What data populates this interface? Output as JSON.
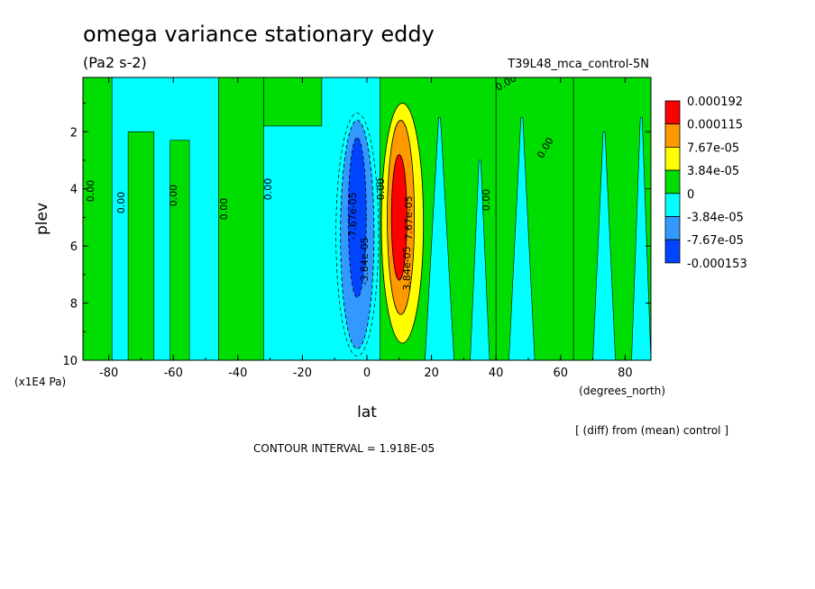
{
  "title": "omega variance stationary eddy",
  "units": "(Pa2 s-2)",
  "run_label": "T39L48_mca_control-5N",
  "units_note": "(x1E4 Pa)",
  "x_units_label": "(degrees_north)",
  "diff_note": "[ (diff) from (mean) control ]",
  "contour_interval": "CONTOUR INTERVAL = 1.918E-05",
  "contour_label_zero": "0.00",
  "contour_label_neg": "-7.67e-05",
  "contour_label_neg2": "-3.84e-05",
  "contour_label_pos": "3.84e-05",
  "contour_label_pos2": "7.67e-05",
  "chart_data": {
    "type": "heatmap",
    "title": "omega variance stationary eddy",
    "xlabel": "lat",
    "ylabel": "plev",
    "xlim": [
      -88,
      88
    ],
    "ylim": [
      10,
      0.1
    ],
    "x_ticks": [
      "-80",
      "-60",
      "-40",
      "-20",
      "0",
      "20",
      "40",
      "60",
      "80"
    ],
    "x_tick_values": [
      -80,
      -60,
      -40,
      -20,
      0,
      20,
      40,
      60,
      80
    ],
    "y_ticks": [
      "2",
      "4",
      "6",
      "8",
      "10"
    ],
    "y_tick_values": [
      2,
      4,
      6,
      8,
      10
    ],
    "legend": {
      "labels": [
        "0.000192",
        "0.000115",
        "7.67e-05",
        "3.84e-05",
        "0",
        "-3.84e-05",
        "-7.67e-05",
        "-0.000153"
      ],
      "colors": [
        "#ff0000",
        "#ff9900",
        "#ffff00",
        "#00dd00",
        "#00ffff",
        "#3399ff",
        "#0044ff"
      ],
      "placement": "right"
    },
    "colors": {
      "neg1": "#00ffff",
      "pos1": "#00dd00",
      "neg2": "#3399ff",
      "neg3": "#0044ff",
      "pos2": "#ffff00",
      "pos3": "#ff9900",
      "pos4": "#ff0000"
    },
    "green_bands": [
      {
        "lat": [
          -88,
          -79
        ],
        "plev": [
          0.1,
          10
        ]
      },
      {
        "lat": [
          -74,
          -66
        ],
        "plev": [
          2.0,
          10
        ]
      },
      {
        "lat": [
          -61,
          -55
        ],
        "plev": [
          2.3,
          10
        ]
      },
      {
        "lat": [
          -46,
          -32
        ],
        "plev": [
          0.1,
          10
        ]
      },
      {
        "lat": [
          -32,
          -14
        ],
        "plev": [
          0.1,
          1.8
        ]
      },
      {
        "lat": [
          4,
          40
        ],
        "plev": [
          0.1,
          10
        ]
      },
      {
        "lat": [
          40,
          64
        ],
        "plev": [
          0.1,
          10
        ]
      },
      {
        "lat": [
          64,
          88
        ],
        "plev": [
          0.1,
          10
        ]
      }
    ],
    "cyan_holes": [
      {
        "lat": [
          18,
          27
        ],
        "plev": [
          1.5,
          10
        ]
      },
      {
        "lat": [
          32,
          38
        ],
        "plev": [
          3.0,
          10
        ]
      },
      {
        "lat": [
          44,
          52
        ],
        "plev": [
          1.5,
          10
        ]
      },
      {
        "lat": [
          70,
          77
        ],
        "plev": [
          2.0,
          10
        ]
      },
      {
        "lat": [
          82,
          88
        ],
        "plev": [
          1.5,
          10
        ]
      }
    ],
    "blobs": [
      {
        "center": [
          -3.0,
          5.6
        ],
        "radius": [
          5.2,
          4.0
        ],
        "level": "neg2"
      },
      {
        "center": [
          -3.0,
          5.0
        ],
        "radius": [
          2.8,
          2.8
        ],
        "level": "neg3"
      },
      {
        "center": [
          11.0,
          5.2
        ],
        "radius": [
          6.5,
          4.2
        ],
        "level": "pos2"
      },
      {
        "center": [
          10.5,
          5.0
        ],
        "radius": [
          4.2,
          3.4
        ],
        "level": "pos3"
      },
      {
        "center": [
          10.0,
          5.0
        ],
        "radius": [
          2.4,
          2.2
        ],
        "level": "pos4"
      }
    ]
  }
}
